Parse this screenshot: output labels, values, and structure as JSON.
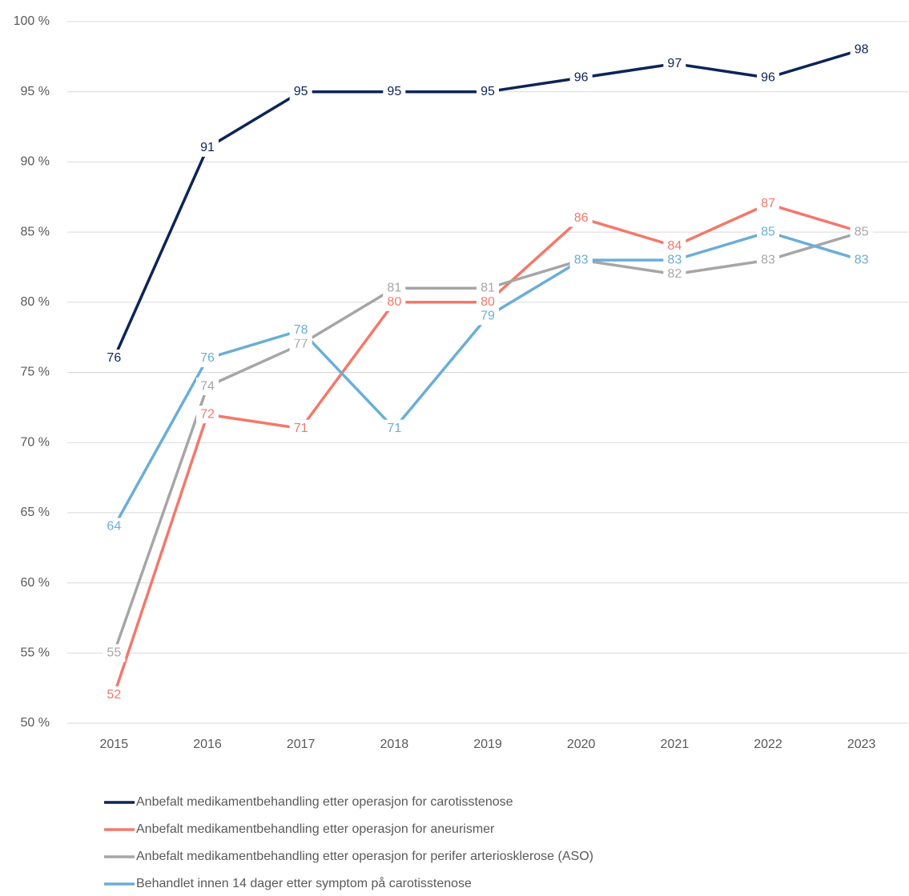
{
  "chart_data": {
    "type": "line",
    "categories": [
      "2015",
      "2016",
      "2017",
      "2018",
      "2019",
      "2020",
      "2021",
      "2022",
      "2023"
    ],
    "series": [
      {
        "name": "Anbefalt medikamentbehandling etter operasjon for carotisstenose",
        "color": "#0d2457",
        "values": [
          76,
          91,
          95,
          95,
          95,
          96,
          97,
          96,
          98
        ]
      },
      {
        "name": "Anbefalt medikamentbehandling etter operasjon for aneurismer",
        "color": "#f4786a",
        "values": [
          52,
          72,
          71,
          80,
          80,
          86,
          84,
          87,
          85
        ]
      },
      {
        "name": "Anbefalt medikamentbehandling etter operasjon for perifer arteriosklerose (ASO)",
        "color": "#a6a6a6",
        "values": [
          55,
          74,
          77,
          81,
          81,
          83,
          82,
          83,
          85
        ]
      },
      {
        "name": "Behandlet innen 14 dager etter symptom på carotisstenose",
        "color": "#6aaed6",
        "values": [
          64,
          76,
          78,
          71,
          79,
          83,
          83,
          85,
          83
        ]
      }
    ],
    "ylim": [
      50,
      100
    ],
    "yticks": [
      {
        "value": 50,
        "label": "50 %"
      },
      {
        "value": 55,
        "label": "55 %"
      },
      {
        "value": 60,
        "label": "60 %"
      },
      {
        "value": 65,
        "label": "65 %"
      },
      {
        "value": 70,
        "label": "70 %"
      },
      {
        "value": 75,
        "label": "75 %"
      },
      {
        "value": 80,
        "label": "80 %"
      },
      {
        "value": 85,
        "label": "85 %"
      },
      {
        "value": 90,
        "label": "90 %"
      },
      {
        "value": 95,
        "label": "95 %"
      },
      {
        "value": 100,
        "label": "100 %"
      }
    ],
    "grid": true,
    "legend": "bottom"
  }
}
